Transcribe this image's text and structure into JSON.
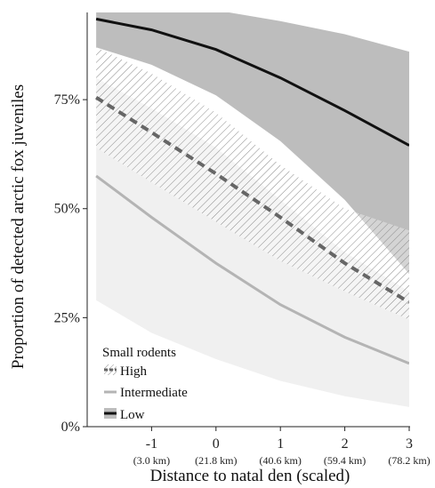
{
  "chart_data": {
    "type": "line",
    "xlabel": "Distance to natal den (scaled)",
    "ylabel": "Proportion of detected arctic fox juveniles",
    "xlim": [
      -2.0,
      3.0
    ],
    "ylim": [
      0,
      0.95
    ],
    "x_ticks": [
      {
        "value": -1,
        "label": "-1",
        "sublabel": "(3.0 km)"
      },
      {
        "value": 0,
        "label": "0",
        "sublabel": "(21.8 km)"
      },
      {
        "value": 1,
        "label": "1",
        "sublabel": "(40.6 km)"
      },
      {
        "value": 2,
        "label": "2",
        "sublabel": "(59.4 km)"
      },
      {
        "value": 3,
        "label": "3",
        "sublabel": "(78.2 km)"
      }
    ],
    "y_ticks": [
      {
        "value": 0.0,
        "label": "0%"
      },
      {
        "value": 0.25,
        "label": "25%"
      },
      {
        "value": 0.5,
        "label": "50%"
      },
      {
        "value": 0.75,
        "label": "75%"
      }
    ],
    "x": [
      -1.86,
      -1,
      0,
      1,
      2,
      3
    ],
    "series": [
      {
        "name": "Low",
        "style": "solid",
        "color": "#111111",
        "band_color": "#bdbdbd",
        "values": [
          0.935,
          0.91,
          0.865,
          0.8,
          0.725,
          0.645
        ],
        "lower": [
          0.87,
          0.83,
          0.76,
          0.655,
          0.52,
          0.35
        ],
        "upper": [
          0.98,
          0.97,
          0.955,
          0.93,
          0.9,
          0.86
        ]
      },
      {
        "name": "High",
        "style": "dashed",
        "color": "#666666",
        "band_color": "#cfcfcf",
        "values": [
          0.755,
          0.675,
          0.58,
          0.48,
          0.375,
          0.285
        ],
        "lower": [
          0.64,
          0.56,
          0.47,
          0.38,
          0.31,
          0.245
        ],
        "upper": [
          0.87,
          0.81,
          0.72,
          0.6,
          0.5,
          0.45
        ]
      },
      {
        "name": "Intermediate",
        "style": "solid",
        "color": "#b4b4b4",
        "band_color": "#f0f0f0",
        "values": [
          0.575,
          0.48,
          0.375,
          0.28,
          0.205,
          0.145
        ],
        "lower": [
          0.29,
          0.215,
          0.155,
          0.105,
          0.07,
          0.045
        ],
        "upper": [
          0.8,
          0.73,
          0.64,
          0.52,
          0.4,
          0.31
        ]
      }
    ],
    "legend": {
      "title": "Small rodents",
      "position": "bottom-left",
      "entries": [
        "High",
        "Intermediate",
        "Low"
      ]
    },
    "grid": false
  }
}
